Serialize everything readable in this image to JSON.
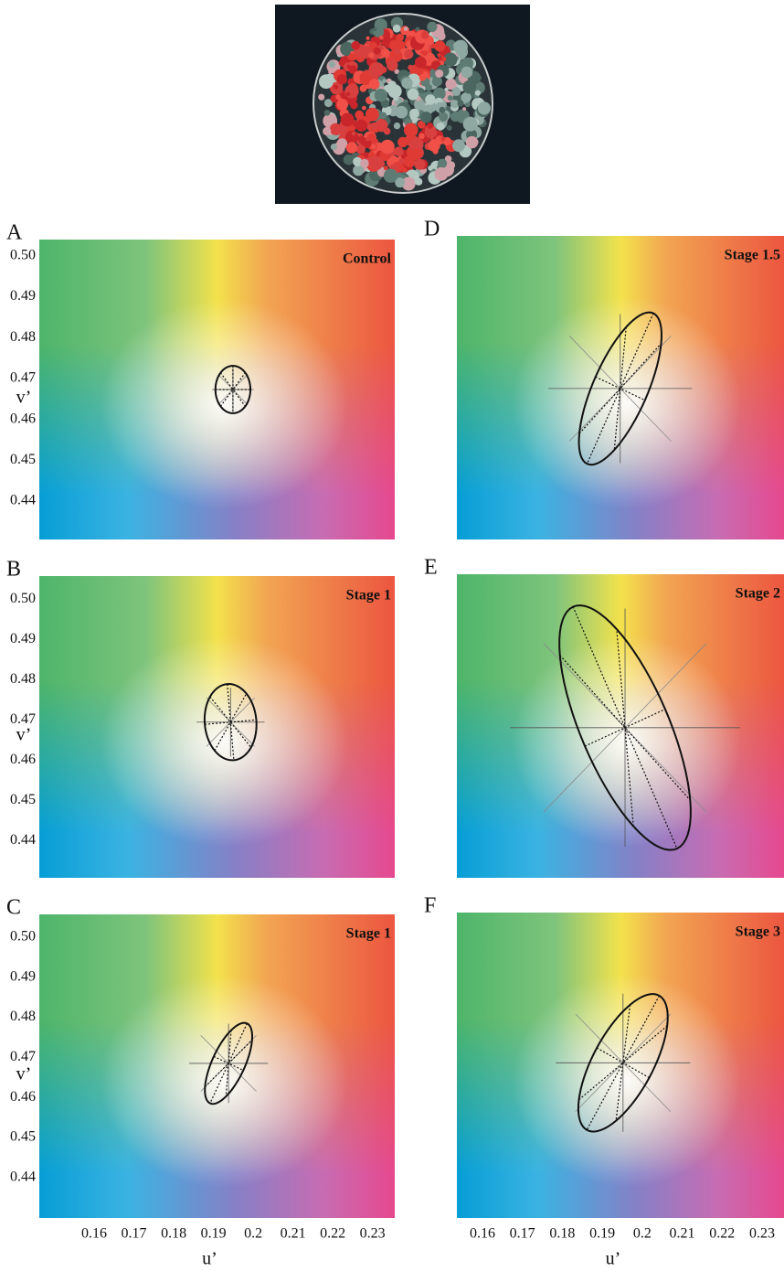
{
  "chart_data": [
    {
      "type": "ellipse",
      "panel_label": "A",
      "title": "Control",
      "ylabel": "v’",
      "xlim": [
        0.1462,
        0.2356
      ],
      "ylim": [
        0.4306,
        0.504
      ],
      "yticks": [
        {
          "value": 0.5,
          "label": "0.50"
        },
        0.49,
        0.48,
        0.47,
        0.46,
        0.45,
        0.44
      ],
      "ellipse": {
        "center": [
          0.1949,
          0.4673
        ],
        "axes": [
          0.0058,
          0.0044
        ],
        "angle": 90
      }
    },
    {
      "type": "ellipse",
      "panel_label": "B",
      "title": "Stage 1",
      "ylabel": "v’",
      "xlim": [
        0.1462,
        0.2356
      ],
      "ylim": [
        0.4307,
        0.5057
      ],
      "yticks": [
        {
          "value": 0.5,
          "label": "0.50"
        },
        0.49,
        0.48,
        0.47,
        0.46,
        0.45,
        0.44
      ],
      "ellipse": {
        "center": [
          0.1943,
          0.4694
        ],
        "axes": [
          0.0095,
          0.0065
        ],
        "angle": 95
      }
    },
    {
      "type": "ellipse",
      "panel_label": "C",
      "title": "Stage 1",
      "ylabel": "v’",
      "xlabel": "u’",
      "xlim": [
        0.1462,
        0.2356
      ],
      "ylim": [
        0.4299,
        0.5057
      ],
      "yticks": [
        {
          "value": 0.5,
          "label": "0.50"
        },
        0.49,
        0.48,
        0.47,
        0.46,
        0.45,
        0.44
      ],
      "xticks": [
        0.16,
        0.17,
        0.18,
        0.19,
        0.2,
        0.21,
        0.22,
        0.23
      ],
      "ellipse": {
        "center": [
          0.1938,
          0.4685
        ],
        "axes": [
          0.011,
          0.0041
        ],
        "angle": 65
      }
    },
    {
      "type": "ellipse",
      "panel_label": "D",
      "title": "Stage 1.5",
      "xlim": [
        0.1536,
        0.2355
      ],
      "ylim": [
        0.4306,
        0.504
      ],
      "ellipse": {
        "center": [
          0.1945,
          0.4671
        ],
        "axes": [
          0.02,
          0.0068
        ],
        "angle": 65.5
      }
    },
    {
      "type": "ellipse",
      "panel_label": "E",
      "title": "Stage 2",
      "xlim": [
        0.1536,
        0.2355
      ],
      "ylim": [
        0.4306,
        0.504
      ],
      "ellipse": {
        "center": [
          0.1957,
          0.4669
        ],
        "axes": [
          0.032,
          0.011
        ],
        "angle": 114
      }
    },
    {
      "type": "ellipse",
      "panel_label": "F",
      "title": "Stage 3",
      "xlabel": "u’",
      "xlim": [
        0.1536,
        0.2355
      ],
      "ylim": [
        0.4298,
        0.5042
      ],
      "xticks": [
        0.16,
        0.17,
        0.18,
        0.19,
        0.2,
        0.21,
        0.22,
        0.23
      ],
      "ellipse": {
        "center": [
          0.1952,
          0.4676
        ],
        "axes": [
          0.0187,
          0.0075
        ],
        "angle": 61
      }
    }
  ]
}
